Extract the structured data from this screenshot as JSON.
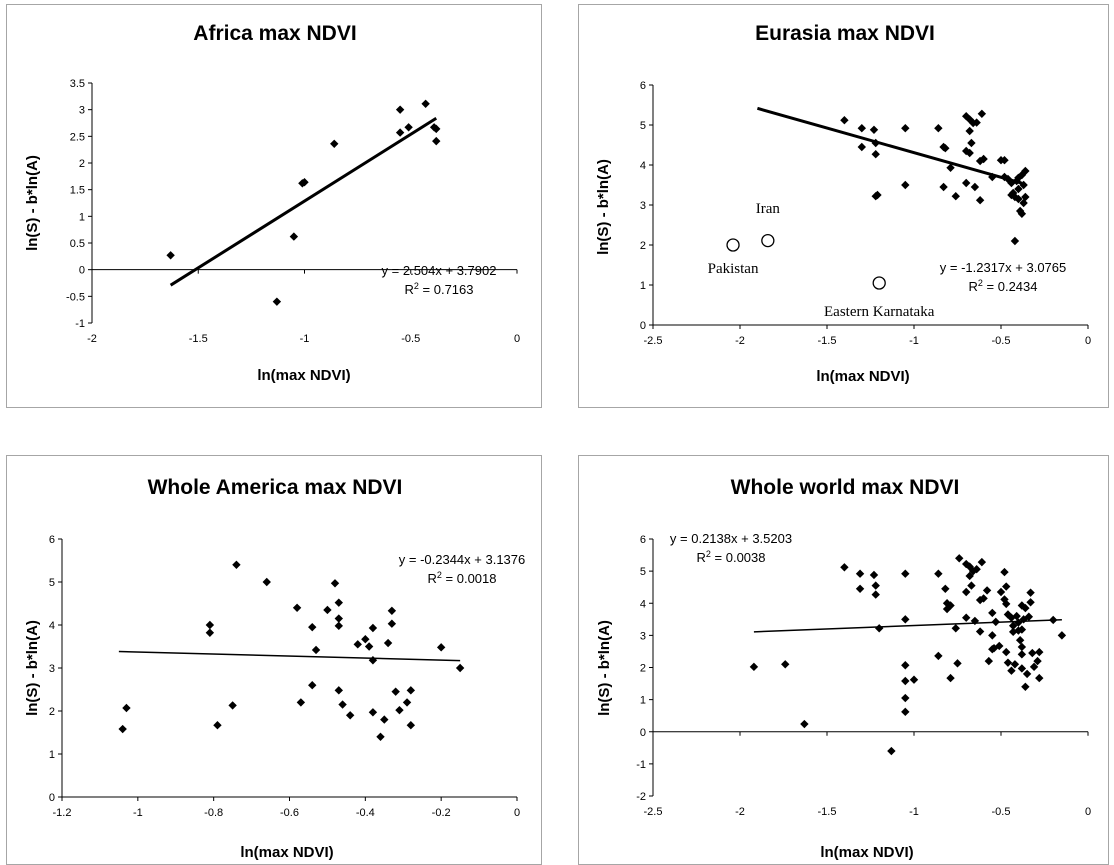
{
  "chart_data": [
    {
      "type": "scatter",
      "title": "Africa max NDVI",
      "xlabel": "ln(max NDVI)",
      "ylabel": "ln(S) - b*ln(A)",
      "xlim": [
        -2,
        0
      ],
      "ylim": [
        -1,
        3.5
      ],
      "xticks": [
        -2,
        -1.5,
        -1,
        -0.5,
        0
      ],
      "xtick_labels": [
        "-2",
        "-1.5",
        "-1",
        "-0.5",
        "0"
      ],
      "yticks": [
        -1,
        -0.5,
        0,
        0.5,
        1,
        1.5,
        2,
        2.5,
        3,
        3.5
      ],
      "ytick_labels": [
        "-1",
        "-0.5",
        "0",
        "0.5",
        "1",
        "1.5",
        "2",
        "2.5",
        "3",
        "3.5"
      ],
      "grid": false,
      "series": [
        {
          "marker": "diamond",
          "points": [
            [
              -1.63,
              0.27
            ],
            [
              -1.13,
              -0.6
            ],
            [
              -1.05,
              0.62
            ],
            [
              -1.01,
              1.62
            ],
            [
              -1.0,
              1.64
            ],
            [
              -0.86,
              2.36
            ],
            [
              -0.55,
              3.0
            ],
            [
              -0.55,
              2.57
            ],
            [
              -0.51,
              2.67
            ],
            [
              -0.43,
              3.11
            ],
            [
              -0.39,
              2.67
            ],
            [
              -0.38,
              2.64
            ],
            [
              -0.38,
              2.41
            ]
          ]
        }
      ],
      "trendline": {
        "slope": 2.504,
        "intercept": 3.7902,
        "x_range": [
          -1.63,
          -0.38
        ],
        "width": 3
      },
      "equation": "y = 2.504x + 3.7902",
      "r2_label": "R",
      "r2_sup": "2",
      "r2_value": " = 0.7163",
      "annotations": []
    },
    {
      "type": "scatter",
      "title": "Eurasia max NDVI",
      "xlabel": "ln(max NDVI)",
      "ylabel": "ln(S) - b*ln(A)",
      "xlim": [
        -2.5,
        0
      ],
      "ylim": [
        0,
        6
      ],
      "xticks": [
        -2.5,
        -2,
        -1.5,
        -1,
        -0.5,
        0
      ],
      "xtick_labels": [
        "-2.5",
        "-2",
        "-1.5",
        "-1",
        "-0.5",
        "0"
      ],
      "yticks": [
        0,
        1,
        2,
        3,
        4,
        5,
        6
      ],
      "ytick_labels": [
        "0",
        "1",
        "2",
        "3",
        "4",
        "5",
        "6"
      ],
      "grid": false,
      "series": [
        {
          "marker": "diamond",
          "points": [
            [
              -1.4,
              5.12
            ],
            [
              -1.3,
              4.92
            ],
            [
              -1.23,
              4.88
            ],
            [
              -1.3,
              4.45
            ],
            [
              -1.22,
              4.55
            ],
            [
              -1.22,
              4.27
            ],
            [
              -1.22,
              3.22
            ],
            [
              -1.21,
              3.25
            ],
            [
              -1.05,
              4.92
            ],
            [
              -1.05,
              3.5
            ],
            [
              -0.86,
              4.92
            ],
            [
              -0.83,
              4.45
            ],
            [
              -0.82,
              4.42
            ],
            [
              -0.83,
              3.45
            ],
            [
              -0.79,
              3.93
            ],
            [
              -0.76,
              3.22
            ],
            [
              -0.7,
              5.22
            ],
            [
              -0.68,
              5.14
            ],
            [
              -0.66,
              5.05
            ],
            [
              -0.64,
              5.06
            ],
            [
              -0.61,
              5.28
            ],
            [
              -0.68,
              4.85
            ],
            [
              -0.67,
              4.55
            ],
            [
              -0.7,
              4.35
            ],
            [
              -0.68,
              4.3
            ],
            [
              -0.62,
              4.1
            ],
            [
              -0.6,
              4.15
            ],
            [
              -0.7,
              3.55
            ],
            [
              -0.65,
              3.45
            ],
            [
              -0.62,
              3.12
            ],
            [
              -0.55,
              3.7
            ],
            [
              -0.5,
              4.12
            ],
            [
              -0.48,
              4.12
            ],
            [
              -0.48,
              3.7
            ],
            [
              -0.46,
              3.65
            ],
            [
              -0.44,
              3.55
            ],
            [
              -0.43,
              3.3
            ],
            [
              -0.42,
              3.2
            ],
            [
              -0.42,
              2.1
            ],
            [
              -0.41,
              3.6
            ],
            [
              -0.4,
              3.4
            ],
            [
              -0.4,
              3.15
            ],
            [
              -0.39,
              2.85
            ],
            [
              -0.38,
              2.78
            ],
            [
              -0.38,
              3.75
            ],
            [
              -0.37,
              3.5
            ],
            [
              -0.36,
              3.2
            ],
            [
              -0.36,
              3.85
            ],
            [
              -0.37,
              3.05
            ],
            [
              -0.4,
              3.68
            ],
            [
              -0.44,
              3.25
            ]
          ]
        },
        {
          "marker": "circle",
          "points": [
            [
              -2.04,
              2.0
            ],
            [
              -1.84,
              2.11
            ],
            [
              -1.2,
              1.05
            ]
          ]
        }
      ],
      "trendline": {
        "slope": -1.2317,
        "intercept": 3.0765,
        "x_range": [
          -1.9,
          -0.38
        ],
        "width": 3
      },
      "equation": "y = -1.2317x + 3.0765",
      "r2_label": "R",
      "r2_sup": "2",
      "r2_value": " = 0.2434",
      "annotations": [
        {
          "text": "Iran",
          "x": -1.84,
          "y": 2.8
        },
        {
          "text": "Pakistan",
          "x": -2.04,
          "y": 1.3
        },
        {
          "text": "Eastern Karnataka",
          "x": -1.2,
          "y": 0.22
        }
      ]
    },
    {
      "type": "scatter",
      "title": "Whole America max NDVI",
      "xlabel": "ln(max NDVI)",
      "ylabel": "ln(S) - b*ln(A)",
      "xlim": [
        -1.2,
        0
      ],
      "ylim": [
        0,
        6
      ],
      "xticks": [
        -1.2,
        -1,
        -0.8,
        -0.6,
        -0.4,
        -0.2,
        0
      ],
      "xtick_labels": [
        "-1.2",
        "-1",
        "-0.8",
        "-0.6",
        "-0.4",
        "-0.2",
        "0"
      ],
      "yticks": [
        0,
        1,
        2,
        3,
        4,
        5,
        6
      ],
      "ytick_labels": [
        "0",
        "1",
        "2",
        "3",
        "4",
        "5",
        "6"
      ],
      "grid": false,
      "series": [
        {
          "marker": "diamond",
          "points": [
            [
              -1.04,
              1.58
            ],
            [
              -1.03,
              2.07
            ],
            [
              -0.81,
              3.82
            ],
            [
              -0.81,
              4.0
            ],
            [
              -0.79,
              1.67
            ],
            [
              -0.75,
              2.13
            ],
            [
              -0.74,
              5.4
            ],
            [
              -0.66,
              5.0
            ],
            [
              -0.58,
              4.4
            ],
            [
              -0.57,
              2.2
            ],
            [
              -0.54,
              3.95
            ],
            [
              -0.53,
              3.42
            ],
            [
              -0.54,
              2.6
            ],
            [
              -0.5,
              4.35
            ],
            [
              -0.48,
              4.97
            ],
            [
              -0.47,
              4.52
            ],
            [
              -0.47,
              4.15
            ],
            [
              -0.47,
              3.98
            ],
            [
              -0.47,
              2.48
            ],
            [
              -0.46,
              2.15
            ],
            [
              -0.44,
              1.9
            ],
            [
              -0.42,
              3.55
            ],
            [
              -0.4,
              3.67
            ],
            [
              -0.39,
              3.5
            ],
            [
              -0.38,
              3.18
            ],
            [
              -0.38,
              3.93
            ],
            [
              -0.38,
              1.97
            ],
            [
              -0.36,
              1.4
            ],
            [
              -0.35,
              1.8
            ],
            [
              -0.34,
              3.58
            ],
            [
              -0.33,
              4.03
            ],
            [
              -0.33,
              4.33
            ],
            [
              -0.32,
              2.45
            ],
            [
              -0.31,
              2.02
            ],
            [
              -0.29,
              2.2
            ],
            [
              -0.28,
              2.48
            ],
            [
              -0.28,
              1.67
            ],
            [
              -0.2,
              3.48
            ],
            [
              -0.15,
              3.0
            ]
          ]
        }
      ],
      "trendline": {
        "slope": -0.2344,
        "intercept": 3.1376,
        "x_range": [
          -1.05,
          -0.15
        ],
        "width": 1.5
      },
      "equation": "y = -0.2344x + 3.1376",
      "r2_label": "R",
      "r2_sup": "2",
      "r2_value": " = 0.0018",
      "annotations": []
    },
    {
      "type": "scatter",
      "title": "Whole world max NDVI",
      "xlabel": "ln(max NDVI)",
      "ylabel": "ln(S) - b*ln(A)",
      "xlim": [
        -2.5,
        0
      ],
      "ylim": [
        -2,
        6
      ],
      "xticks": [
        -2.5,
        -2,
        -1.5,
        -1,
        -0.5,
        0
      ],
      "xtick_labels": [
        "-2.5",
        "-2",
        "-1.5",
        "-1",
        "-0.5",
        "0"
      ],
      "yticks": [
        -2,
        -1,
        0,
        1,
        2,
        3,
        4,
        5,
        6
      ],
      "ytick_labels": [
        "-2",
        "-1",
        "0",
        "1",
        "2",
        "3",
        "4",
        "5",
        "6"
      ],
      "grid": false,
      "series": [
        {
          "marker": "diamond",
          "points": [
            [
              -1.92,
              2.02
            ],
            [
              -1.74,
              2.1
            ],
            [
              -1.63,
              0.24
            ],
            [
              -1.4,
              5.12
            ],
            [
              -1.31,
              4.92
            ],
            [
              -1.31,
              4.45
            ],
            [
              -1.23,
              4.88
            ],
            [
              -1.22,
              4.55
            ],
            [
              -1.22,
              4.27
            ],
            [
              -1.2,
              3.22
            ],
            [
              -1.13,
              -0.6
            ],
            [
              -1.05,
              4.92
            ],
            [
              -1.05,
              3.5
            ],
            [
              -1.05,
              2.07
            ],
            [
              -1.05,
              1.58
            ],
            [
              -1.05,
              1.05
            ],
            [
              -1.05,
              0.62
            ],
            [
              -1.0,
              1.62
            ],
            [
              -0.86,
              2.36
            ],
            [
              -0.86,
              4.92
            ],
            [
              -0.82,
              4.45
            ],
            [
              -0.81,
              4.0
            ],
            [
              -0.81,
              3.82
            ],
            [
              -0.79,
              3.93
            ],
            [
              -0.79,
              1.67
            ],
            [
              -0.76,
              3.22
            ],
            [
              -0.75,
              2.13
            ],
            [
              -0.74,
              5.4
            ],
            [
              -0.7,
              5.22
            ],
            [
              -0.68,
              5.14
            ],
            [
              -0.66,
              5.0
            ],
            [
              -0.64,
              5.06
            ],
            [
              -0.61,
              5.28
            ],
            [
              -0.68,
              4.85
            ],
            [
              -0.67,
              4.55
            ],
            [
              -0.7,
              4.35
            ],
            [
              -0.62,
              4.1
            ],
            [
              -0.6,
              4.15
            ],
            [
              -0.7,
              3.55
            ],
            [
              -0.65,
              3.45
            ],
            [
              -0.62,
              3.12
            ],
            [
              -0.58,
              4.4
            ],
            [
              -0.57,
              2.2
            ],
            [
              -0.55,
              3.7
            ],
            [
              -0.55,
              3.0
            ],
            [
              -0.55,
              2.57
            ],
            [
              -0.54,
              2.6
            ],
            [
              -0.53,
              3.42
            ],
            [
              -0.51,
              2.67
            ],
            [
              -0.5,
              4.35
            ],
            [
              -0.48,
              4.97
            ],
            [
              -0.48,
              4.12
            ],
            [
              -0.47,
              4.52
            ],
            [
              -0.47,
              3.98
            ],
            [
              -0.47,
              2.48
            ],
            [
              -0.46,
              2.15
            ],
            [
              -0.46,
              3.65
            ],
            [
              -0.44,
              1.9
            ],
            [
              -0.44,
              3.55
            ],
            [
              -0.43,
              3.11
            ],
            [
              -0.43,
              3.3
            ],
            [
              -0.42,
              2.1
            ],
            [
              -0.41,
              3.6
            ],
            [
              -0.4,
              3.4
            ],
            [
              -0.4,
              3.15
            ],
            [
              -0.39,
              2.85
            ],
            [
              -0.38,
              3.93
            ],
            [
              -0.38,
              3.18
            ],
            [
              -0.38,
              2.41
            ],
            [
              -0.38,
              2.64
            ],
            [
              -0.38,
              1.97
            ],
            [
              -0.37,
              3.5
            ],
            [
              -0.36,
              1.4
            ],
            [
              -0.36,
              3.85
            ],
            [
              -0.35,
              1.8
            ],
            [
              -0.34,
              3.58
            ],
            [
              -0.33,
              4.03
            ],
            [
              -0.33,
              4.33
            ],
            [
              -0.32,
              2.45
            ],
            [
              -0.31,
              2.02
            ],
            [
              -0.29,
              2.2
            ],
            [
              -0.28,
              2.48
            ],
            [
              -0.28,
              1.67
            ],
            [
              -0.2,
              3.48
            ],
            [
              -0.15,
              3.0
            ]
          ]
        }
      ],
      "trendline": {
        "slope": 0.2138,
        "intercept": 3.5203,
        "x_range": [
          -1.92,
          -0.15
        ],
        "width": 1.5
      },
      "equation": "y = 0.2138x + 3.5203",
      "r2_label": "R",
      "r2_sup": "2",
      "r2_value": " = 0.0038",
      "annotations": []
    }
  ]
}
